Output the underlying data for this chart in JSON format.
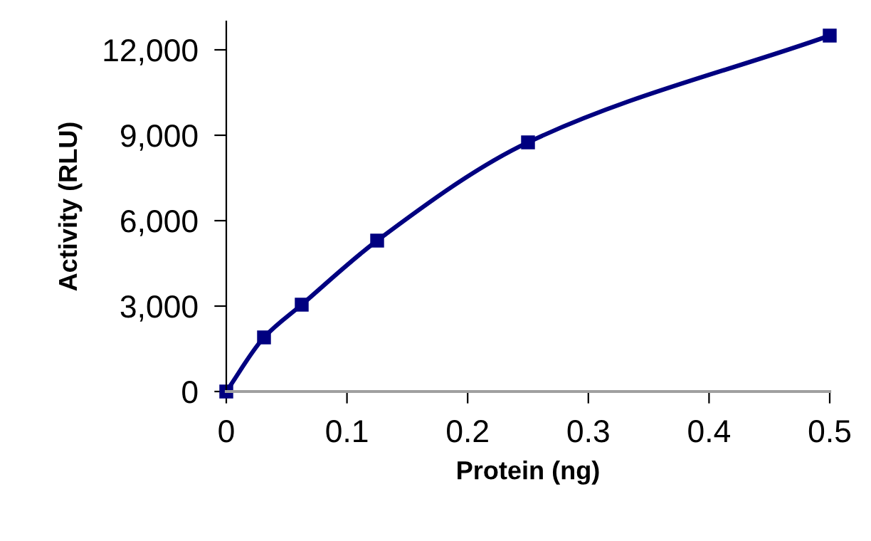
{
  "chart_data": {
    "type": "line",
    "xlabel": "Protein (ng)",
    "ylabel": "Activity (RLU)",
    "x": [
      0,
      0.03125,
      0.0625,
      0.125,
      0.25,
      0.5
    ],
    "series": [
      {
        "color": "#000080",
        "values": [
          0,
          1900,
          3050,
          5300,
          8750,
          12500
        ]
      }
    ],
    "xlim": [
      0,
      0.5
    ],
    "ylim": [
      0,
      13000
    ],
    "xticks": [
      0,
      0.1,
      0.2,
      0.3,
      0.4,
      0.5
    ],
    "yticks": [
      0,
      {
        "value": 3000,
        "label": "3,000"
      },
      {
        "value": 6000,
        "label": "6,000"
      },
      {
        "value": 9000,
        "label": "9,000"
      },
      {
        "value": 12000,
        "label": "12,000"
      }
    ],
    "grid": false,
    "legend": false,
    "marker": "square",
    "line_style": "solid"
  }
}
